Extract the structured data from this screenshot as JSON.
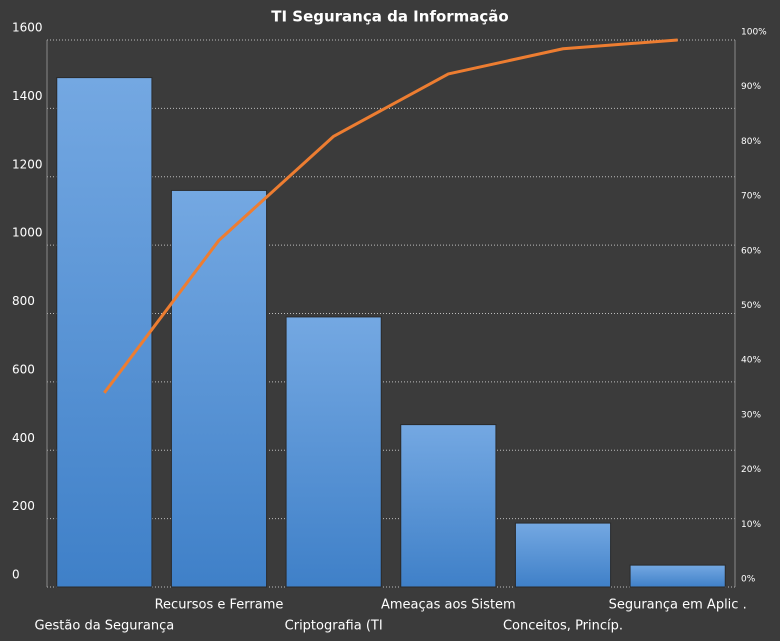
{
  "chart_data": {
    "type": "pareto",
    "title": "TI Segurança da Informação",
    "categories": [
      "Gestão da Segurança",
      "Recursos e Ferrame",
      "Criptografia (TI",
      "Ameaças aos Sistem",
      "Conceitos, Princíp.",
      "Segurança em Aplic ."
    ],
    "series": [
      {
        "type": "bar",
        "color": "#4a8ad4",
        "values": [
          1490,
          1160,
          790,
          475,
          187,
          64
        ]
      },
      {
        "type": "line",
        "color": "#ed7d31",
        "axis": "y2",
        "values": [
          35.5,
          63.4,
          82.4,
          93.8,
          98.4,
          100
        ]
      }
    ],
    "ylim": [
      0,
      1600
    ],
    "yticks": [
      0,
      200,
      400,
      600,
      800,
      1000,
      1200,
      1400,
      1600
    ],
    "y2lim": [
      0,
      100
    ],
    "y2ticks": [
      {
        "value": 0,
        "label": "0%"
      },
      {
        "value": 10,
        "label": "10%"
      },
      {
        "value": 20,
        "label": "20%"
      },
      {
        "value": 30,
        "label": "30%"
      },
      {
        "value": 40,
        "label": "40%"
      },
      {
        "value": 50,
        "label": "50%"
      },
      {
        "value": 60,
        "label": "60%"
      },
      {
        "value": 70,
        "label": "70%"
      },
      {
        "value": 80,
        "label": "80%"
      },
      {
        "value": 90,
        "label": "90%"
      },
      {
        "value": 100,
        "label": "100%"
      }
    ],
    "grid": true
  }
}
